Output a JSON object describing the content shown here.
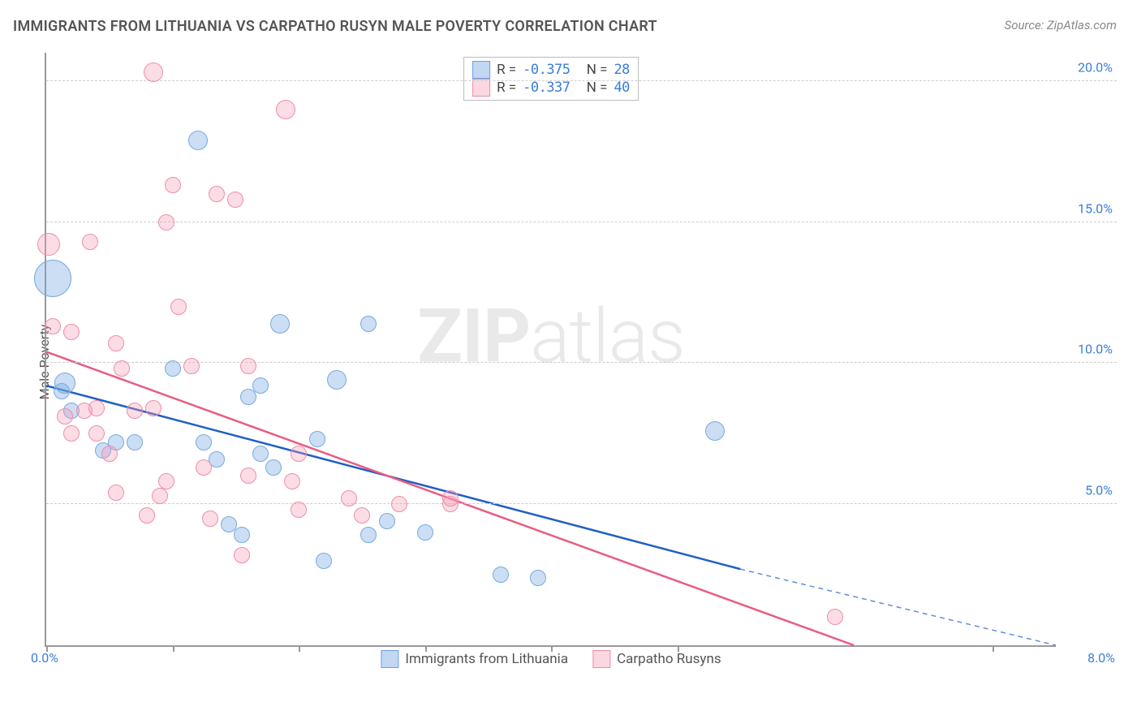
{
  "title": "IMMIGRANTS FROM LITHUANIA VS CARPATHO RUSYN MALE POVERTY CORRELATION CHART",
  "source": "Source: ZipAtlas.com",
  "y_axis_label": "Male Poverty",
  "watermark": {
    "a": "ZIP",
    "b": "atlas"
  },
  "chart": {
    "type": "scatter",
    "background_color": "#ffffff",
    "grid_color": "#cccccc",
    "axis_color": "#999999",
    "xlim": [
      0.0,
      8.0
    ],
    "ylim": [
      0.0,
      21.0
    ],
    "x_ticks": [
      0.0,
      1.0,
      2.0,
      3.0,
      4.0,
      5.0,
      7.5
    ],
    "x_tick_labels_shown": {
      "0": "0.0%",
      "8": "8.0%"
    },
    "y_ticks": [
      5.0,
      10.0,
      15.0,
      20.0
    ],
    "y_tick_labels": [
      "5.0%",
      "10.0%",
      "15.0%",
      "20.0%"
    ],
    "series": [
      {
        "key": "lithuania",
        "label": "Immigrants from Lithuania",
        "fill": "rgba(118,167,227,0.38)",
        "stroke": "#79a9e0",
        "line_color": "#1f5fc4",
        "line_width": 2.5,
        "R": "-0.375",
        "N": "28",
        "points": [
          {
            "x": 0.05,
            "y": 13.0,
            "r": 22
          },
          {
            "x": 0.15,
            "y": 9.3,
            "r": 12
          },
          {
            "x": 0.12,
            "y": 9.0,
            "r": 9
          },
          {
            "x": 0.55,
            "y": 7.2,
            "r": 9
          },
          {
            "x": 0.7,
            "y": 7.2,
            "r": 9
          },
          {
            "x": 0.45,
            "y": 6.9,
            "r": 9
          },
          {
            "x": 1.2,
            "y": 17.9,
            "r": 11
          },
          {
            "x": 1.0,
            "y": 9.8,
            "r": 9
          },
          {
            "x": 1.25,
            "y": 7.2,
            "r": 9
          },
          {
            "x": 1.35,
            "y": 6.6,
            "r": 9
          },
          {
            "x": 1.45,
            "y": 4.3,
            "r": 9
          },
          {
            "x": 1.85,
            "y": 11.4,
            "r": 11
          },
          {
            "x": 1.7,
            "y": 9.2,
            "r": 9
          },
          {
            "x": 1.6,
            "y": 8.8,
            "r": 9
          },
          {
            "x": 1.7,
            "y": 6.8,
            "r": 9
          },
          {
            "x": 1.8,
            "y": 6.3,
            "r": 9
          },
          {
            "x": 1.55,
            "y": 3.9,
            "r": 9
          },
          {
            "x": 2.15,
            "y": 7.3,
            "r": 9
          },
          {
            "x": 2.3,
            "y": 9.4,
            "r": 11
          },
          {
            "x": 2.2,
            "y": 3.0,
            "r": 9
          },
          {
            "x": 2.55,
            "y": 11.4,
            "r": 9
          },
          {
            "x": 2.55,
            "y": 3.9,
            "r": 9
          },
          {
            "x": 2.7,
            "y": 4.4,
            "r": 9
          },
          {
            "x": 3.0,
            "y": 4.0,
            "r": 9
          },
          {
            "x": 3.6,
            "y": 2.5,
            "r": 9
          },
          {
            "x": 3.9,
            "y": 2.4,
            "r": 9
          },
          {
            "x": 5.3,
            "y": 7.6,
            "r": 11
          },
          {
            "x": 0.2,
            "y": 8.3,
            "r": 9
          }
        ],
        "regression": {
          "x1": 0.0,
          "y1": 9.2,
          "x2": 5.5,
          "y2": 2.7,
          "dash_to_x": 8.0,
          "dash_to_y": 0.0
        }
      },
      {
        "key": "carpatho",
        "label": "Carpatho Rusyns",
        "fill": "rgba(245,156,180,0.35)",
        "stroke": "#ec8fa8",
        "line_color": "#e95b82",
        "line_width": 2.5,
        "R": "-0.337",
        "N": "40",
        "points": [
          {
            "x": 0.02,
            "y": 14.2,
            "r": 13
          },
          {
            "x": 0.05,
            "y": 11.3,
            "r": 9
          },
          {
            "x": 0.2,
            "y": 11.1,
            "r": 9
          },
          {
            "x": 0.35,
            "y": 14.3,
            "r": 9
          },
          {
            "x": 0.4,
            "y": 8.4,
            "r": 9
          },
          {
            "x": 0.3,
            "y": 8.3,
            "r": 9
          },
          {
            "x": 0.15,
            "y": 8.1,
            "r": 9
          },
          {
            "x": 0.2,
            "y": 7.5,
            "r": 9
          },
          {
            "x": 0.4,
            "y": 7.5,
            "r": 9
          },
          {
            "x": 0.55,
            "y": 10.7,
            "r": 9
          },
          {
            "x": 0.6,
            "y": 9.8,
            "r": 9
          },
          {
            "x": 0.7,
            "y": 8.3,
            "r": 9
          },
          {
            "x": 0.5,
            "y": 6.8,
            "r": 9
          },
          {
            "x": 0.55,
            "y": 5.4,
            "r": 9
          },
          {
            "x": 0.85,
            "y": 20.3,
            "r": 11
          },
          {
            "x": 0.95,
            "y": 15.0,
            "r": 9
          },
          {
            "x": 1.0,
            "y": 16.3,
            "r": 9
          },
          {
            "x": 1.05,
            "y": 12.0,
            "r": 9
          },
          {
            "x": 0.85,
            "y": 8.4,
            "r": 9
          },
          {
            "x": 0.95,
            "y": 5.8,
            "r": 9
          },
          {
            "x": 0.9,
            "y": 5.3,
            "r": 9
          },
          {
            "x": 0.8,
            "y": 4.6,
            "r": 9
          },
          {
            "x": 1.35,
            "y": 16.0,
            "r": 9
          },
          {
            "x": 1.15,
            "y": 9.9,
            "r": 9
          },
          {
            "x": 1.25,
            "y": 6.3,
            "r": 9
          },
          {
            "x": 1.3,
            "y": 4.5,
            "r": 9
          },
          {
            "x": 1.5,
            "y": 15.8,
            "r": 9
          },
          {
            "x": 1.6,
            "y": 9.9,
            "r": 9
          },
          {
            "x": 1.6,
            "y": 6.0,
            "r": 9
          },
          {
            "x": 1.55,
            "y": 3.2,
            "r": 9
          },
          {
            "x": 1.9,
            "y": 19.0,
            "r": 11
          },
          {
            "x": 1.95,
            "y": 5.8,
            "r": 9
          },
          {
            "x": 2.0,
            "y": 4.8,
            "r": 9
          },
          {
            "x": 2.0,
            "y": 6.8,
            "r": 9
          },
          {
            "x": 2.4,
            "y": 5.2,
            "r": 9
          },
          {
            "x": 2.5,
            "y": 4.6,
            "r": 9
          },
          {
            "x": 2.8,
            "y": 5.0,
            "r": 9
          },
          {
            "x": 3.2,
            "y": 5.0,
            "r": 9
          },
          {
            "x": 3.2,
            "y": 5.2,
            "r": 9
          },
          {
            "x": 6.25,
            "y": 1.0,
            "r": 9
          }
        ],
        "regression": {
          "x1": 0.0,
          "y1": 10.4,
          "x2": 6.4,
          "y2": 0.0
        }
      }
    ]
  }
}
